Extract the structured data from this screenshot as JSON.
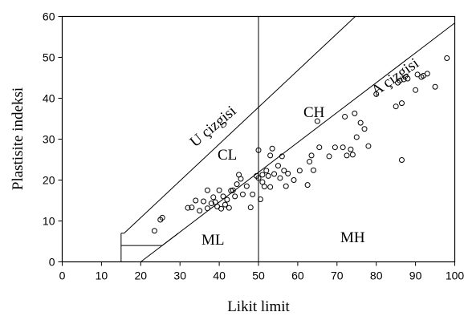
{
  "chart_data": {
    "type": "scatter",
    "title": "",
    "xlabel": "Likit limit",
    "ylabel": "Plastisite indeksi",
    "xlim": [
      0,
      100
    ],
    "ylim": [
      0,
      60
    ],
    "x_ticks": [
      "0",
      "10",
      "20",
      "30",
      "40",
      "50",
      "60",
      "70",
      "80",
      "90",
      "100"
    ],
    "y_ticks": [
      "0",
      "10",
      "20",
      "30",
      "40",
      "50",
      "60"
    ],
    "grid": false,
    "lines": {
      "a_line_label": "A çizgisi",
      "u_line_label": "U çizgisi"
    },
    "regions": {
      "cl": "CL",
      "ch": "CH",
      "ml": "ML",
      "mh": "MH"
    },
    "points": [
      {
        "x": 23.5,
        "y": 7.6
      },
      {
        "x": 25.0,
        "y": 10.3
      },
      {
        "x": 25.5,
        "y": 10.8
      },
      {
        "x": 32.0,
        "y": 13.2
      },
      {
        "x": 33.0,
        "y": 13.3
      },
      {
        "x": 34.0,
        "y": 15.0
      },
      {
        "x": 35.0,
        "y": 12.5
      },
      {
        "x": 36.0,
        "y": 14.8
      },
      {
        "x": 37.0,
        "y": 13.1
      },
      {
        "x": 37.0,
        "y": 17.5
      },
      {
        "x": 38.0,
        "y": 14.3
      },
      {
        "x": 38.5,
        "y": 15.8
      },
      {
        "x": 39.0,
        "y": 14.6
      },
      {
        "x": 39.5,
        "y": 13.5
      },
      {
        "x": 40.0,
        "y": 17.5
      },
      {
        "x": 40.5,
        "y": 13.0
      },
      {
        "x": 41.0,
        "y": 16.0
      },
      {
        "x": 41.5,
        "y": 14.0
      },
      {
        "x": 42.0,
        "y": 15.2
      },
      {
        "x": 42.5,
        "y": 13.2
      },
      {
        "x": 43.0,
        "y": 17.4
      },
      {
        "x": 43.5,
        "y": 17.5
      },
      {
        "x": 44.0,
        "y": 16.0
      },
      {
        "x": 44.5,
        "y": 19.0
      },
      {
        "x": 45.0,
        "y": 21.3
      },
      {
        "x": 45.5,
        "y": 20.3
      },
      {
        "x": 46.0,
        "y": 16.5
      },
      {
        "x": 47.0,
        "y": 18.5
      },
      {
        "x": 48.0,
        "y": 13.3
      },
      {
        "x": 48.5,
        "y": 16.5
      },
      {
        "x": 49.5,
        "y": 21.0
      },
      {
        "x": 50.0,
        "y": 27.3
      },
      {
        "x": 50.0,
        "y": 20.5
      },
      {
        "x": 50.5,
        "y": 15.3
      },
      {
        "x": 51.0,
        "y": 19.5
      },
      {
        "x": 51.0,
        "y": 21.3
      },
      {
        "x": 51.5,
        "y": 18.4
      },
      {
        "x": 52.0,
        "y": 22.3
      },
      {
        "x": 52.5,
        "y": 21.0
      },
      {
        "x": 53.0,
        "y": 26.0
      },
      {
        "x": 53.0,
        "y": 18.3
      },
      {
        "x": 53.5,
        "y": 27.7
      },
      {
        "x": 54.0,
        "y": 21.5
      },
      {
        "x": 55.0,
        "y": 23.5
      },
      {
        "x": 55.5,
        "y": 20.5
      },
      {
        "x": 56.0,
        "y": 25.8
      },
      {
        "x": 56.5,
        "y": 22.3
      },
      {
        "x": 57.0,
        "y": 18.5
      },
      {
        "x": 57.5,
        "y": 21.6
      },
      {
        "x": 59.0,
        "y": 20.0
      },
      {
        "x": 60.5,
        "y": 22.3
      },
      {
        "x": 62.5,
        "y": 18.8
      },
      {
        "x": 63.0,
        "y": 24.5
      },
      {
        "x": 63.5,
        "y": 26.0
      },
      {
        "x": 64.0,
        "y": 22.4
      },
      {
        "x": 65.0,
        "y": 34.4
      },
      {
        "x": 65.5,
        "y": 28.0
      },
      {
        "x": 68.0,
        "y": 25.8
      },
      {
        "x": 69.5,
        "y": 28.0
      },
      {
        "x": 71.5,
        "y": 28.0
      },
      {
        "x": 72.0,
        "y": 35.5
      },
      {
        "x": 72.5,
        "y": 26.0
      },
      {
        "x": 73.5,
        "y": 27.5
      },
      {
        "x": 74.0,
        "y": 26.2
      },
      {
        "x": 74.5,
        "y": 36.3
      },
      {
        "x": 75.0,
        "y": 30.5
      },
      {
        "x": 76.0,
        "y": 34.0
      },
      {
        "x": 77.0,
        "y": 32.5
      },
      {
        "x": 78.0,
        "y": 28.3
      },
      {
        "x": 80.0,
        "y": 41.0
      },
      {
        "x": 85.0,
        "y": 38.0
      },
      {
        "x": 85.5,
        "y": 43.8
      },
      {
        "x": 86.0,
        "y": 44.3
      },
      {
        "x": 86.5,
        "y": 38.8
      },
      {
        "x": 86.5,
        "y": 24.9
      },
      {
        "x": 87.0,
        "y": 44.6
      },
      {
        "x": 88.0,
        "y": 44.8
      },
      {
        "x": 90.0,
        "y": 42.0
      },
      {
        "x": 90.5,
        "y": 45.8
      },
      {
        "x": 91.5,
        "y": 45.2
      },
      {
        "x": 92.0,
        "y": 45.5
      },
      {
        "x": 93.0,
        "y": 46.0
      },
      {
        "x": 95.0,
        "y": 42.8
      },
      {
        "x": 98.0,
        "y": 49.8
      }
    ]
  }
}
